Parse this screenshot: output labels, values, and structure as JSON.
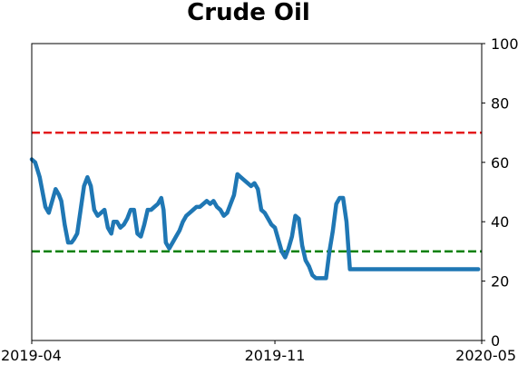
{
  "chart_data": {
    "type": "line",
    "title": "Crude Oil",
    "xlabel": "",
    "ylabel": "",
    "ylim": [
      0,
      100
    ],
    "xlim": [
      "2019-04-01",
      "2020-05-01"
    ],
    "x_ticks": [
      {
        "date": "2019-04-01",
        "label": "2019-04"
      },
      {
        "date": "2019-11-01",
        "label": "2019-11"
      },
      {
        "date": "2020-05-01",
        "label": "2020-05"
      }
    ],
    "y_ticks": [
      0,
      20,
      40,
      60,
      80,
      100
    ],
    "y_axis_side": "right",
    "grid": false,
    "legend": "none",
    "reference_lines": [
      {
        "y": 70,
        "color": "#e41a1c",
        "style": "dashed"
      },
      {
        "y": 30,
        "color": "#008000",
        "style": "dashed"
      }
    ],
    "series": [
      {
        "color": "#1f77b4",
        "x": [
          "2019-04-01",
          "2019-04-04",
          "2019-04-08",
          "2019-04-10",
          "2019-04-13",
          "2019-04-16",
          "2019-04-19",
          "2019-04-22",
          "2019-04-25",
          "2019-04-27",
          "2019-04-30",
          "2019-05-03",
          "2019-05-06",
          "2019-05-08",
          "2019-05-11",
          "2019-05-14",
          "2019-05-17",
          "2019-05-20",
          "2019-05-23",
          "2019-05-26",
          "2019-05-29",
          "2019-06-01",
          "2019-06-04",
          "2019-06-07",
          "2019-06-10",
          "2019-06-12",
          "2019-06-15",
          "2019-06-18",
          "2019-06-21",
          "2019-06-24",
          "2019-06-27",
          "2019-06-30",
          "2019-07-03",
          "2019-07-06",
          "2019-07-09",
          "2019-07-12",
          "2019-07-15",
          "2019-07-18",
          "2019-07-21",
          "2019-07-24",
          "2019-07-26",
          "2019-07-28",
          "2019-07-31",
          "2019-08-03",
          "2019-08-06",
          "2019-08-09",
          "2019-08-12",
          "2019-08-15",
          "2019-08-18",
          "2019-08-21",
          "2019-08-24",
          "2019-08-27",
          "2019-08-30",
          "2019-09-02",
          "2019-09-05",
          "2019-09-08",
          "2019-09-11",
          "2019-09-14",
          "2019-09-17",
          "2019-09-20",
          "2019-09-23",
          "2019-09-26",
          "2019-09-29",
          "2019-10-02",
          "2019-10-05",
          "2019-10-08",
          "2019-10-11",
          "2019-10-14",
          "2019-10-17",
          "2019-10-20",
          "2019-10-23",
          "2019-10-26",
          "2019-10-29",
          "2019-11-01",
          "2019-11-04",
          "2019-11-07",
          "2019-11-10",
          "2019-11-13",
          "2019-11-16",
          "2019-11-19",
          "2019-11-22",
          "2019-11-25",
          "2019-11-28",
          "2019-12-01",
          "2019-12-04",
          "2019-12-07",
          "2019-12-10",
          "2019-12-13",
          "2019-12-16",
          "2019-12-19",
          "2019-12-22",
          "2019-12-25",
          "2019-12-28",
          "2019-12-31",
          "2020-01-03",
          "2020-01-06",
          "2020-01-09",
          "2020-01-12",
          "2020-01-15",
          "2020-01-18",
          "2020-01-21",
          "2020-01-24",
          "2020-01-27",
          "2020-01-30",
          "2020-02-02",
          "2020-02-05",
          "2020-02-08",
          "2020-02-11",
          "2020-02-14",
          "2020-02-17",
          "2020-02-20",
          "2020-02-23",
          "2020-02-26",
          "2020-02-29",
          "2020-03-03",
          "2020-03-06",
          "2020-03-09",
          "2020-03-12",
          "2020-03-15",
          "2020-03-18",
          "2020-03-21",
          "2020-03-24",
          "2020-03-27",
          "2020-03-30",
          "2020-04-02",
          "2020-04-05",
          "2020-04-08",
          "2020-04-11",
          "2020-04-14",
          "2020-04-17",
          "2020-04-20",
          "2020-04-23",
          "2020-04-26",
          "2020-04-28"
        ],
        "values": [
          61,
          60,
          55,
          51,
          45,
          43,
          47,
          51,
          49,
          47,
          39,
          33,
          33,
          34,
          36,
          44,
          52,
          55,
          52,
          44,
          42,
          43,
          44,
          38,
          36,
          40,
          40,
          38,
          39,
          41,
          44,
          44,
          36,
          35,
          39,
          44,
          44,
          45,
          46,
          48,
          44,
          33,
          31,
          33,
          35,
          37,
          40,
          42,
          43,
          44,
          45,
          45,
          46,
          47,
          46,
          47,
          45,
          44,
          42,
          43,
          46,
          49,
          56,
          55,
          54,
          53,
          52,
          53,
          51,
          44,
          43,
          41,
          39,
          38,
          34,
          30,
          28,
          31,
          35,
          42,
          41,
          32,
          27,
          25,
          22,
          21,
          21,
          21,
          21,
          30,
          37,
          46,
          48,
          48,
          40,
          24,
          24,
          24,
          24,
          24,
          24,
          24,
          24,
          24,
          24,
          24,
          24,
          24,
          24,
          24,
          24,
          24,
          24,
          24,
          24,
          24,
          24,
          24,
          24,
          24,
          24,
          24,
          24,
          24,
          24,
          24,
          24,
          24,
          24,
          24,
          24,
          24,
          24,
          24
        ]
      }
    ]
  }
}
